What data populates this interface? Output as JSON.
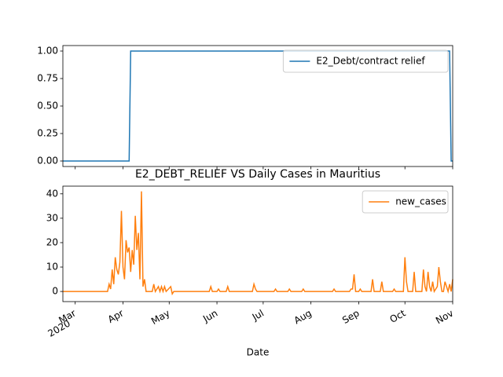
{
  "chart_data": [
    {
      "type": "line",
      "x": [
        "2020-02-22",
        "2020-04-05",
        "2020-04-06",
        "2020-10-30",
        "2020-10-31",
        "2020-11-01"
      ],
      "series": [
        {
          "name": "E2_Debt/contract relief",
          "color": "#1f77b4",
          "values": [
            0,
            0,
            1,
            1,
            0,
            0
          ]
        }
      ],
      "xlim": [
        "2020-02-22",
        "2020-11-01"
      ],
      "ylim": [
        -0.05,
        1.05
      ],
      "yticks": [
        {
          "value": 0,
          "label": "0.00"
        },
        {
          "value": 0.25,
          "label": "0.25"
        },
        {
          "value": 0.5,
          "label": "0.50"
        },
        {
          "value": 0.75,
          "label": "0.75"
        },
        {
          "value": 1,
          "label": "1.00"
        }
      ],
      "legend": "upper right"
    },
    {
      "type": "line",
      "title": "E2_DEBT_RELIEF VS Daily Cases in Mauritius",
      "xlabel": "Date",
      "x": [
        "2020-02-22",
        "2020-03-22",
        "2020-03-23",
        "2020-03-24",
        "2020-03-25",
        "2020-03-26",
        "2020-03-27",
        "2020-03-28",
        "2020-03-29",
        "2020-03-30",
        "2020-03-31",
        "2020-04-01",
        "2020-04-02",
        "2020-04-03",
        "2020-04-04",
        "2020-04-05",
        "2020-04-06",
        "2020-04-07",
        "2020-04-08",
        "2020-04-09",
        "2020-04-10",
        "2020-04-11",
        "2020-04-12",
        "2020-04-13",
        "2020-04-14",
        "2020-04-15",
        "2020-04-16",
        "2020-04-20",
        "2020-04-21",
        "2020-04-22",
        "2020-04-24",
        "2020-04-25",
        "2020-04-26",
        "2020-04-27",
        "2020-04-28",
        "2020-04-29",
        "2020-05-02",
        "2020-05-03",
        "2020-05-04",
        "2020-05-27",
        "2020-05-28",
        "2020-05-29",
        "2020-06-01",
        "2020-06-02",
        "2020-06-03",
        "2020-06-07",
        "2020-06-08",
        "2020-06-09",
        "2020-06-24",
        "2020-06-25",
        "2020-06-26",
        "2020-06-27",
        "2020-07-08",
        "2020-07-09",
        "2020-07-10",
        "2020-07-17",
        "2020-07-18",
        "2020-07-19",
        "2020-07-26",
        "2020-07-27",
        "2020-07-28",
        "2020-08-15",
        "2020-08-16",
        "2020-08-17",
        "2020-08-26",
        "2020-08-27",
        "2020-08-28",
        "2020-08-29",
        "2020-08-30",
        "2020-09-01",
        "2020-09-02",
        "2020-09-03",
        "2020-09-09",
        "2020-09-10",
        "2020-09-11",
        "2020-09-15",
        "2020-09-16",
        "2020-09-17",
        "2020-09-23",
        "2020-09-24",
        "2020-09-25",
        "2020-09-30",
        "2020-10-01",
        "2020-10-02",
        "2020-10-03",
        "2020-10-04",
        "2020-10-06",
        "2020-10-07",
        "2020-10-08",
        "2020-10-12",
        "2020-10-13",
        "2020-10-14",
        "2020-10-15",
        "2020-10-16",
        "2020-10-17",
        "2020-10-18",
        "2020-10-19",
        "2020-10-20",
        "2020-10-22",
        "2020-10-23",
        "2020-10-24",
        "2020-10-25",
        "2020-10-26",
        "2020-10-27",
        "2020-10-29",
        "2020-10-30",
        "2020-10-31",
        "2020-11-01"
      ],
      "series": [
        {
          "name": "new_cases",
          "color": "#ff7f0e",
          "values": [
            0,
            0,
            3,
            1,
            9,
            3,
            14,
            9,
            7,
            12,
            33,
            10,
            5,
            21,
            16,
            18,
            8,
            17,
            11,
            31,
            17,
            24,
            5,
            41,
            2,
            5,
            0,
            0,
            3,
            0,
            2,
            0,
            2,
            0,
            2,
            0,
            2,
            -1,
            0,
            0,
            2,
            0,
            0,
            1,
            0,
            0,
            2,
            0,
            0,
            3,
            1,
            0,
            0,
            1,
            0,
            0,
            1,
            0,
            0,
            1,
            0,
            0,
            1,
            0,
            0,
            1,
            1,
            7,
            0,
            0,
            1,
            0,
            0,
            5,
            0,
            0,
            4,
            0,
            0,
            1,
            0,
            0,
            14,
            4,
            0,
            0,
            0,
            8,
            0,
            0,
            9,
            2,
            0,
            8,
            2,
            0,
            4,
            0,
            2,
            10,
            4,
            0,
            0,
            4,
            0,
            3,
            0,
            5
          ]
        }
      ],
      "xlim": [
        "2020-02-22",
        "2020-11-01"
      ],
      "ylim": [
        -4.15,
        43.15
      ],
      "yticks": [
        0,
        10,
        20,
        30,
        40
      ],
      "xticks": [
        {
          "value": "2020-03-01",
          "label": "Mar"
        },
        {
          "value": "2020-04-01",
          "label": "Apr"
        },
        {
          "value": "2020-05-01",
          "label": "May"
        },
        {
          "value": "2020-06-01",
          "label": "Jun"
        },
        {
          "value": "2020-07-01",
          "label": "Jul"
        },
        {
          "value": "2020-08-01",
          "label": "Aug"
        },
        {
          "value": "2020-09-01",
          "label": "Sep"
        },
        {
          "value": "2020-10-01",
          "label": "Oct"
        },
        {
          "value": "2020-11-01",
          "label": "Nov"
        }
      ],
      "year_label": "2020",
      "legend": "upper right"
    }
  ]
}
